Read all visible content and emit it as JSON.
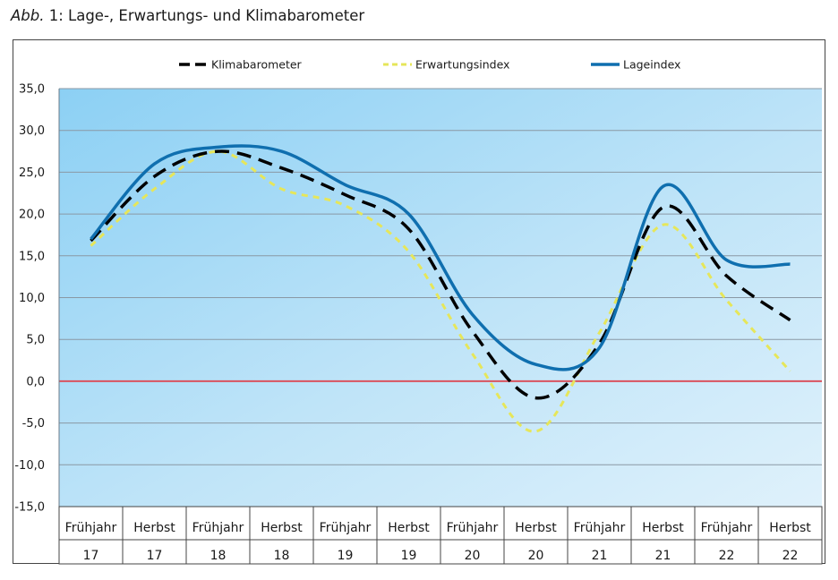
{
  "figure": {
    "prefix": "Abb.",
    "number_title": " 1: Lage-, Erwartungs- und Klimabarometer"
  },
  "chart_data": {
    "type": "line",
    "title": "",
    "xlabel": "",
    "ylabel": "",
    "ylim": [
      -15,
      35
    ],
    "yticks": [
      "35,0",
      "30,0",
      "25,0",
      "20,0",
      "15,0",
      "10,0",
      "5,0",
      "0,0",
      "-5,0",
      "-10,0",
      "-15,0"
    ],
    "ytick_values": [
      35,
      30,
      25,
      20,
      15,
      10,
      5,
      0,
      -5,
      -10,
      -15
    ],
    "categories": [
      {
        "line1": "Frühjahr",
        "line2": "17"
      },
      {
        "line1": "Herbst",
        "line2": "17"
      },
      {
        "line1": "Frühjahr",
        "line2": "18"
      },
      {
        "line1": "Herbst",
        "line2": "18"
      },
      {
        "line1": "Frühjahr",
        "line2": "19"
      },
      {
        "line1": "Herbst",
        "line2": "19"
      },
      {
        "line1": "Frühjahr",
        "line2": "20"
      },
      {
        "line1": "Herbst",
        "line2": "20"
      },
      {
        "line1": "Frühjahr",
        "line2": "21"
      },
      {
        "line1": "Herbst",
        "line2": "21"
      },
      {
        "line1": "Frühjahr",
        "line2": "22"
      },
      {
        "line1": "Herbst",
        "line2": "22"
      }
    ],
    "grid": true,
    "legend": "top",
    "zero_line_color": "#d9535f",
    "series": [
      {
        "name": "Klimabarometer",
        "color": "#000000",
        "style": "dashed",
        "values": [
          16.8,
          24.5,
          27.5,
          25.5,
          22.3,
          18.2,
          6.0,
          -2.0,
          4.5,
          20.8,
          12.6,
          7.3
        ]
      },
      {
        "name": "Erwartungsindex",
        "color": "#e6e65a",
        "style": "dashed",
        "values": [
          16.2,
          23.0,
          27.5,
          23.0,
          21.0,
          15.5,
          3.3,
          -6.0,
          5.8,
          18.7,
          9.7,
          1.2
        ]
      },
      {
        "name": "Lageindex",
        "color": "#0f6faf",
        "style": "solid",
        "values": [
          17.0,
          26.0,
          28.0,
          27.5,
          23.5,
          20.0,
          8.0,
          2.0,
          4.0,
          23.3,
          14.5,
          14.0
        ]
      }
    ]
  }
}
